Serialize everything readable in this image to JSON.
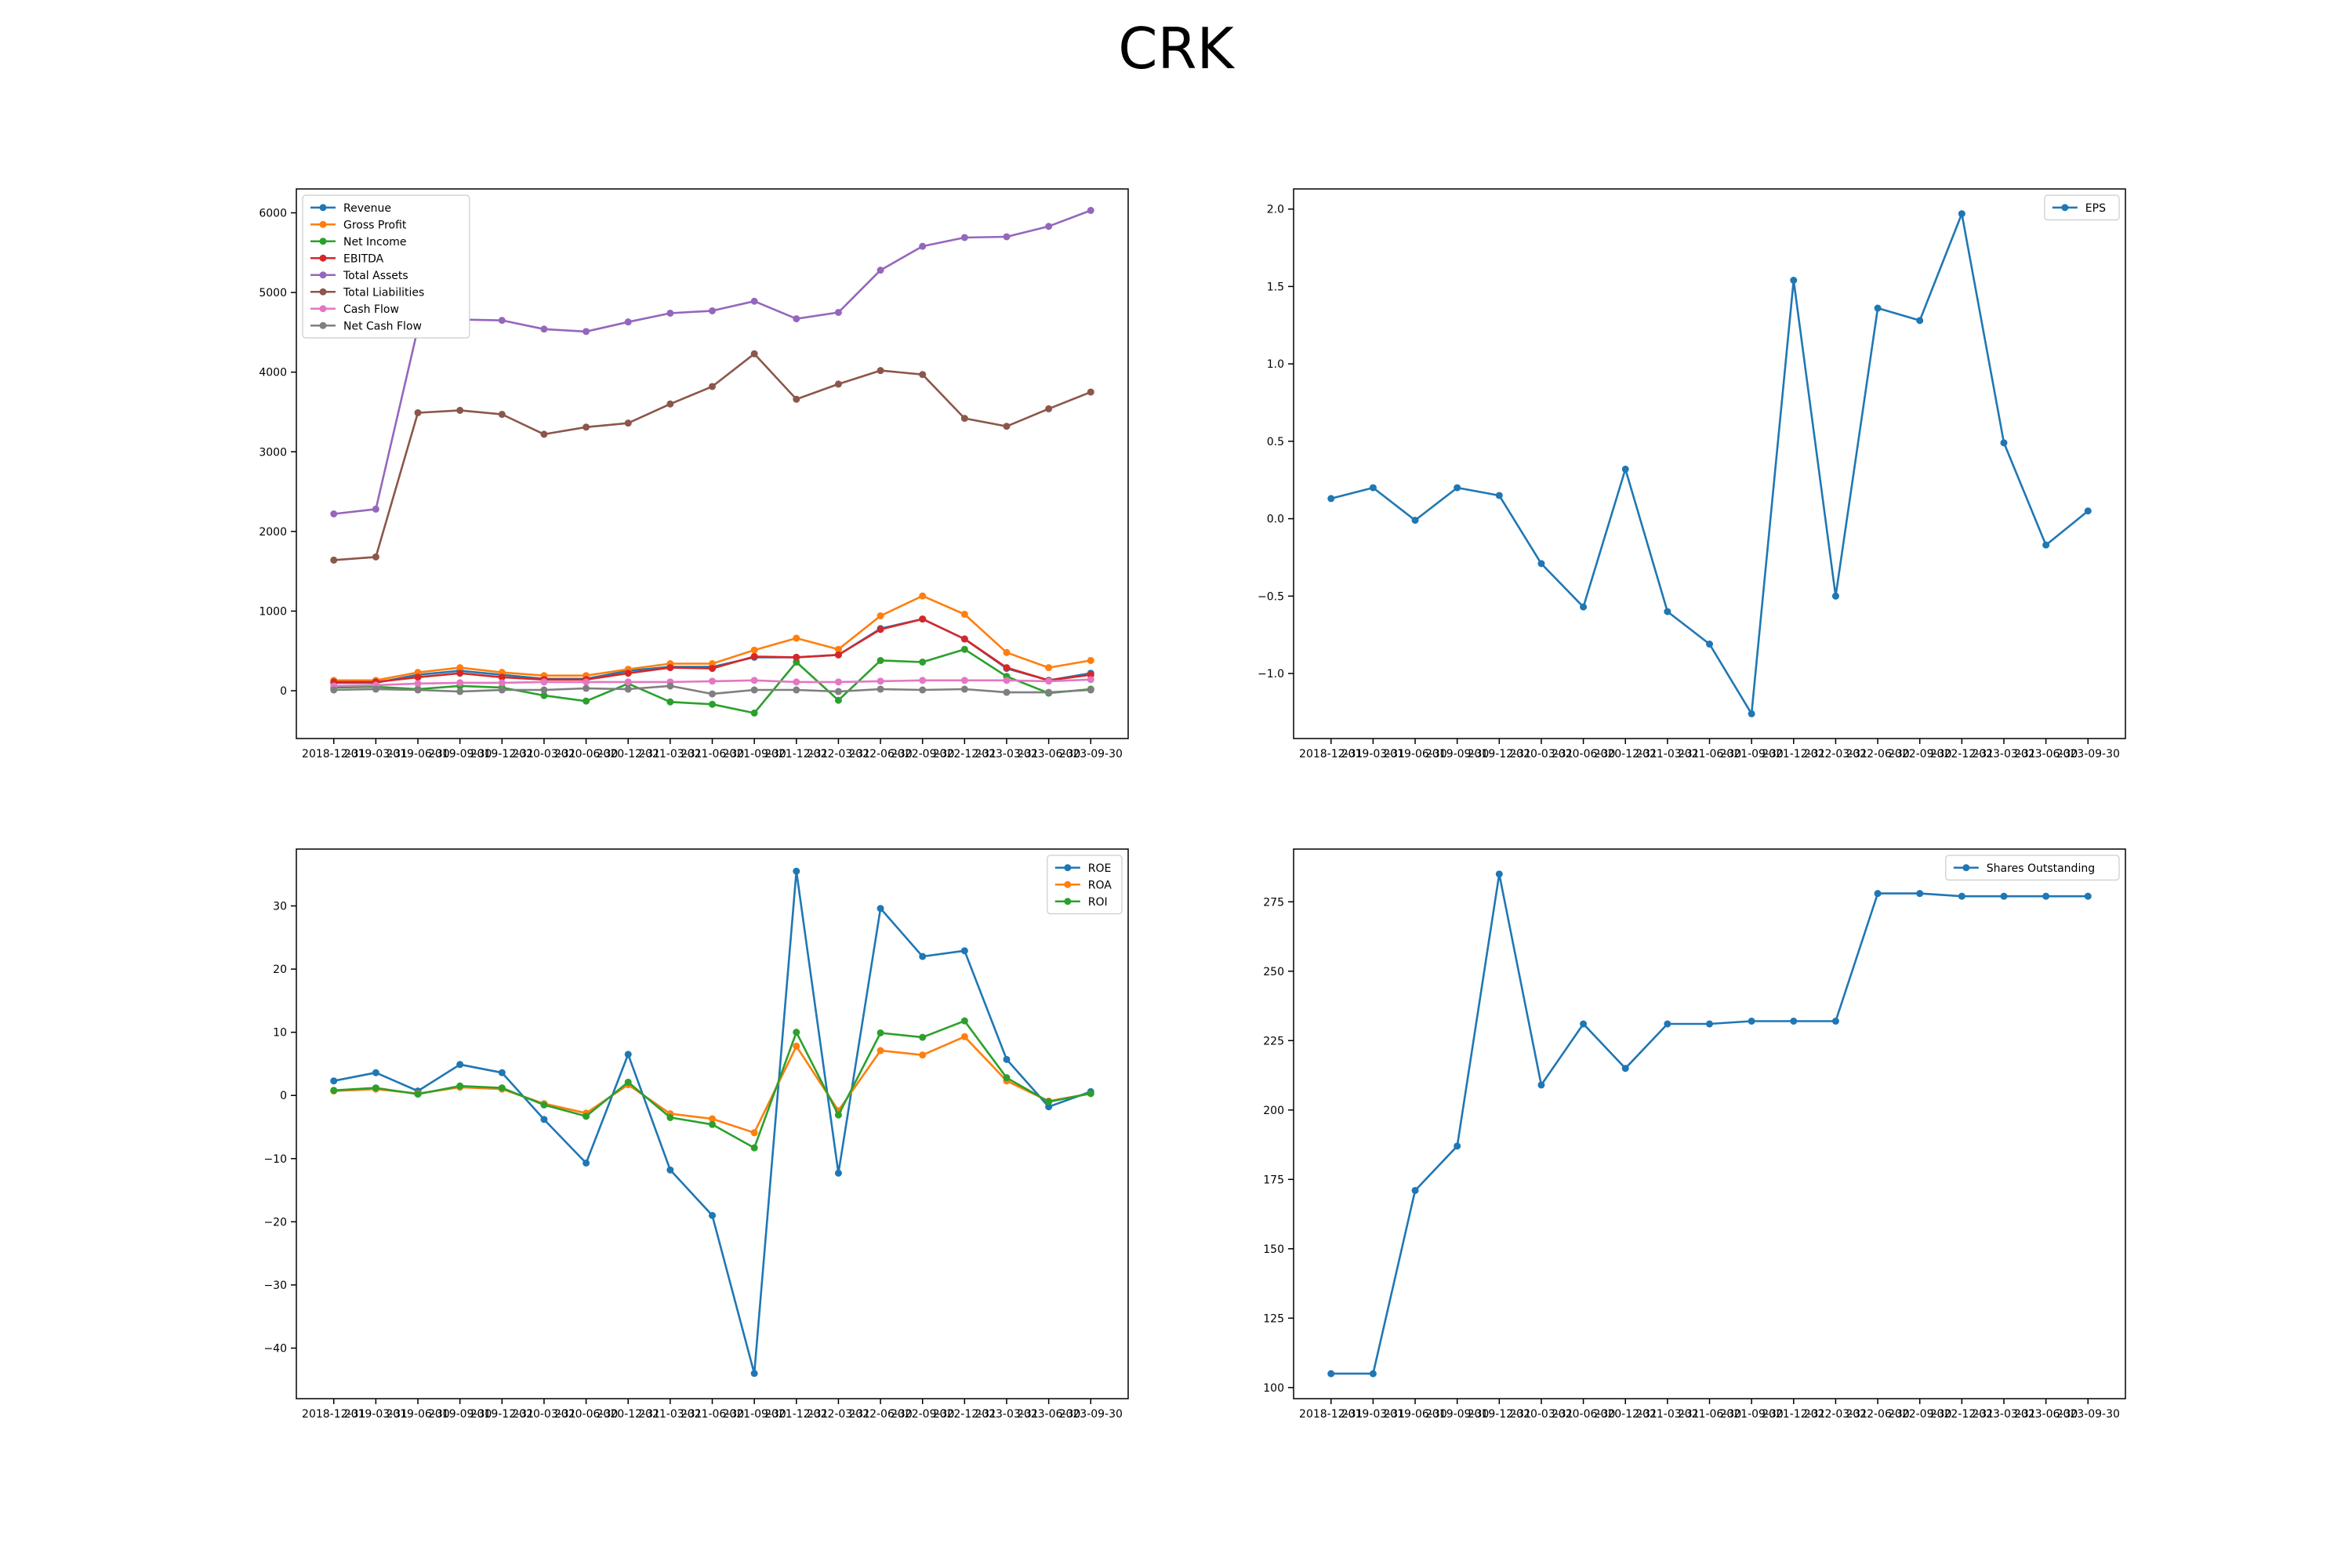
{
  "title": "CRK",
  "dates": [
    "2018-12-31",
    "2019-03-31",
    "2019-06-30",
    "2019-09-30",
    "2019-12-31",
    "2020-03-31",
    "2020-06-30",
    "2020-12-31",
    "2021-03-31",
    "2021-06-30",
    "2021-09-30",
    "2021-12-31",
    "2022-03-31",
    "2022-06-30",
    "2022-09-30",
    "2022-12-31",
    "2023-03-31",
    "2023-06-30",
    "2023-09-30"
  ],
  "colors": {
    "c0": "#1f77b4",
    "c1": "#ff7f0e",
    "c2": "#2ca02c",
    "c3": "#d62728",
    "c4": "#9467bd",
    "c5": "#8c564b",
    "c6": "#e377c2",
    "c7": "#7f7f7f"
  },
  "chart_data": [
    {
      "type": "line",
      "legend": "top-left",
      "ylim": [
        -600,
        6300
      ],
      "yticks": [
        0,
        1000,
        2000,
        3000,
        4000,
        5000,
        6000
      ],
      "series": [
        {
          "name": "Revenue",
          "color": "#1f77b4",
          "values": [
            100,
            100,
            200,
            250,
            200,
            150,
            150,
            250,
            300,
            300,
            420,
            420,
            450,
            780,
            900,
            650,
            280,
            130,
            220
          ]
        },
        {
          "name": "Gross Profit",
          "color": "#ff7f0e",
          "values": [
            130,
            130,
            230,
            290,
            230,
            190,
            190,
            270,
            340,
            340,
            510,
            660,
            520,
            940,
            1190,
            960,
            480,
            290,
            380
          ]
        },
        {
          "name": "Net Income",
          "color": "#2ca02c",
          "values": [
            40,
            50,
            20,
            60,
            40,
            -60,
            -130,
            90,
            -140,
            -170,
            -280,
            360,
            -120,
            380,
            360,
            520,
            180,
            -30,
            20
          ]
        },
        {
          "name": "EBITDA",
          "color": "#d62728",
          "values": [
            110,
            110,
            170,
            220,
            170,
            140,
            140,
            220,
            290,
            280,
            430,
            420,
            450,
            770,
            900,
            650,
            290,
            130,
            200
          ]
        },
        {
          "name": "Total Assets",
          "color": "#9467bd",
          "values": [
            2220,
            2280,
            4550,
            4660,
            4650,
            4540,
            4510,
            4630,
            4740,
            4770,
            4890,
            4670,
            4750,
            5280,
            5580,
            5690,
            5700,
            5830,
            6030
          ]
        },
        {
          "name": "Total Liabilities",
          "color": "#8c564b",
          "values": [
            1640,
            1680,
            3490,
            3520,
            3470,
            3220,
            3310,
            3360,
            3600,
            3820,
            4230,
            3660,
            3850,
            4020,
            3970,
            3420,
            3320,
            3540,
            3750
          ]
        },
        {
          "name": "Cash Flow",
          "color": "#e377c2",
          "values": [
            60,
            70,
            90,
            100,
            100,
            110,
            110,
            110,
            110,
            120,
            130,
            110,
            110,
            120,
            130,
            130,
            130,
            120,
            140
          ]
        },
        {
          "name": "Net Cash Flow",
          "color": "#7f7f7f",
          "values": [
            10,
            20,
            10,
            -10,
            10,
            10,
            30,
            20,
            60,
            -40,
            10,
            10,
            -10,
            20,
            10,
            20,
            -20,
            -20,
            10
          ]
        }
      ]
    },
    {
      "type": "line",
      "legend": "top-right",
      "ylim": [
        -1.42,
        2.13
      ],
      "yticks": [
        -1.0,
        -0.5,
        0.0,
        0.5,
        1.0,
        1.5,
        2.0
      ],
      "ytick_labels": [
        "−1.0",
        "−0.5",
        "0.0",
        "0.5",
        "1.0",
        "1.5",
        "2.0"
      ],
      "series": [
        {
          "name": "EPS",
          "color": "#1f77b4",
          "values": [
            0.13,
            0.2,
            -0.01,
            0.2,
            0.15,
            -0.29,
            -0.57,
            0.32,
            -0.6,
            -0.81,
            -1.26,
            1.54,
            -0.5,
            1.36,
            1.28,
            1.97,
            0.49,
            -0.17,
            0.05
          ]
        }
      ]
    },
    {
      "type": "line",
      "legend": "top-right",
      "ylim": [
        -48,
        39
      ],
      "yticks": [
        -40,
        -30,
        -20,
        -10,
        0,
        10,
        20,
        30
      ],
      "ytick_labels": [
        "−40",
        "−30",
        "−20",
        "−10",
        "0",
        "10",
        "20",
        "30"
      ],
      "series": [
        {
          "name": "ROE",
          "color": "#1f77b4",
          "values": [
            2.3,
            3.6,
            0.7,
            4.9,
            3.6,
            -3.8,
            -10.7,
            6.5,
            -11.8,
            -19,
            -44,
            35.5,
            -12.3,
            29.6,
            22,
            22.9,
            5.7,
            -1.8,
            0.6
          ]
        },
        {
          "name": "ROA",
          "color": "#ff7f0e",
          "values": [
            0.7,
            1.0,
            0.3,
            1.3,
            1.0,
            -1.3,
            -2.8,
            1.7,
            -2.9,
            -3.7,
            -5.9,
            7.8,
            -2.4,
            7.1,
            6.4,
            9.3,
            2.3,
            -0.9,
            0.3
          ]
        },
        {
          "name": "ROI",
          "color": "#2ca02c",
          "values": [
            0.8,
            1.2,
            0.2,
            1.5,
            1.2,
            -1.5,
            -3.3,
            2.1,
            -3.5,
            -4.6,
            -8.3,
            10,
            -3.1,
            9.9,
            9.2,
            11.8,
            2.8,
            -1.0,
            0.3
          ]
        }
      ]
    },
    {
      "type": "line",
      "legend": "top-right",
      "ylim": [
        96,
        294
      ],
      "yticks": [
        100,
        125,
        150,
        175,
        200,
        225,
        250,
        275
      ],
      "series": [
        {
          "name": "Shares Outstanding",
          "color": "#1f77b4",
          "values": [
            105,
            105,
            171,
            187,
            285,
            209,
            231,
            215,
            231,
            231,
            232,
            232,
            232,
            278,
            278,
            277,
            277,
            277,
            277
          ]
        }
      ]
    }
  ]
}
